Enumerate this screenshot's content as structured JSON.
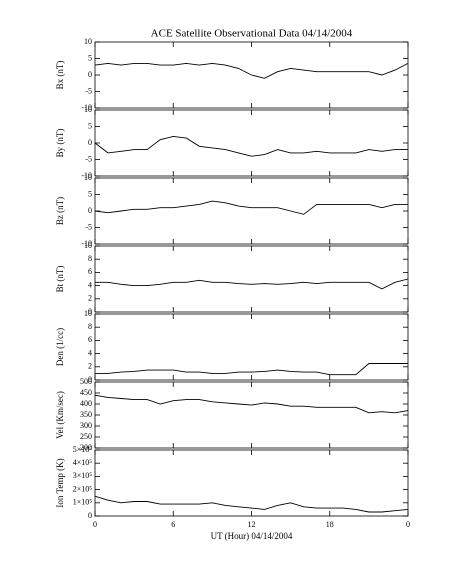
{
  "chart_data": [
    {
      "type": "line",
      "title": "ACE Satellite Observational Data   04/14/2004",
      "y_label": "Bx (nT)",
      "color": "#000000",
      "x": [
        0,
        1,
        2,
        3,
        4,
        5,
        6,
        7,
        8,
        9,
        10,
        11,
        12,
        13,
        14,
        15,
        16,
        17,
        18,
        19,
        20,
        21,
        22,
        23,
        24
      ],
      "values": [
        3,
        3.5,
        3,
        3.5,
        3.5,
        3,
        3,
        3.5,
        3,
        3.5,
        3,
        2,
        0,
        -1,
        1,
        2,
        1.5,
        1,
        1,
        1,
        1,
        1,
        0,
        1.5,
        3.5
      ],
      "xlim": [
        0,
        24
      ],
      "xticks": [
        0,
        6,
        12,
        18,
        {
          "value": 24,
          "label": "0"
        }
      ],
      "ylim": [
        -10,
        10
      ],
      "yticks": [
        -10,
        -5,
        0,
        5,
        10
      ]
    },
    {
      "type": "line",
      "y_label": "By (nT)",
      "color": "#000000",
      "x": [
        0,
        1,
        2,
        3,
        4,
        5,
        6,
        7,
        8,
        9,
        10,
        11,
        12,
        13,
        14,
        15,
        16,
        17,
        18,
        19,
        20,
        21,
        22,
        23,
        24
      ],
      "values": [
        0,
        -3,
        -2.5,
        -2,
        -2,
        1,
        2,
        1.5,
        -1,
        -1.5,
        -2,
        -3,
        -4,
        -3.5,
        -2,
        -3,
        -3,
        -2.5,
        -3,
        -3,
        -3,
        -2,
        -2.5,
        -2,
        -2
      ],
      "xlim": [
        0,
        24
      ],
      "xticks": [
        0,
        6,
        12,
        18,
        {
          "value": 24,
          "label": "0"
        }
      ],
      "ylim": [
        -10,
        10
      ],
      "yticks": [
        -10,
        -5,
        0,
        5,
        10
      ]
    },
    {
      "type": "line",
      "y_label": "Bz (nT)",
      "color": "#000000",
      "x": [
        0,
        1,
        2,
        3,
        4,
        5,
        6,
        7,
        8,
        9,
        10,
        11,
        12,
        13,
        14,
        15,
        16,
        17,
        18,
        19,
        20,
        21,
        22,
        23,
        24
      ],
      "values": [
        0,
        -0.5,
        0,
        0.5,
        0.5,
        1,
        1,
        1.5,
        2,
        3,
        2.5,
        1.5,
        1,
        1,
        1,
        0,
        -1,
        2,
        2,
        2,
        2,
        2,
        1,
        2,
        2
      ],
      "xlim": [
        0,
        24
      ],
      "xticks": [
        0,
        6,
        12,
        18,
        {
          "value": 24,
          "label": "0"
        }
      ],
      "ylim": [
        -10,
        10
      ],
      "yticks": [
        -10,
        -5,
        0,
        5,
        10
      ]
    },
    {
      "type": "line",
      "y_label": "Bt (nT)",
      "color": "#000000",
      "x": [
        0,
        1,
        2,
        3,
        4,
        5,
        6,
        7,
        8,
        9,
        10,
        11,
        12,
        13,
        14,
        15,
        16,
        17,
        18,
        19,
        20,
        21,
        22,
        23,
        24
      ],
      "values": [
        4.5,
        4.5,
        4.2,
        4,
        4,
        4.2,
        4.5,
        4.5,
        4.8,
        4.5,
        4.5,
        4.3,
        4.2,
        4.3,
        4.2,
        4.3,
        4.5,
        4.3,
        4.5,
        4.5,
        4.5,
        4.5,
        3.5,
        4.5,
        5
      ],
      "xlim": [
        0,
        24
      ],
      "xticks": [
        0,
        6,
        12,
        18,
        {
          "value": 24,
          "label": "0"
        }
      ],
      "ylim": [
        0,
        10
      ],
      "yticks": [
        0,
        2,
        4,
        6,
        8,
        10
      ]
    },
    {
      "type": "line",
      "y_label": "Den (1/cc)",
      "color": "#000000",
      "x": [
        0,
        1,
        2,
        3,
        4,
        5,
        6,
        7,
        8,
        9,
        10,
        11,
        12,
        13,
        14,
        15,
        16,
        17,
        18,
        19,
        20,
        21,
        22,
        23,
        24
      ],
      "values": [
        1,
        1,
        1.2,
        1.3,
        1.5,
        1.5,
        1.5,
        1.2,
        1.2,
        1,
        1,
        1.2,
        1.2,
        1.3,
        1.5,
        1.3,
        1.2,
        1.2,
        0.8,
        0.8,
        0.8,
        2.5,
        2.5,
        2.5,
        2.5
      ],
      "xlim": [
        0,
        24
      ],
      "xticks": [
        0,
        6,
        12,
        18,
        {
          "value": 24,
          "label": "0"
        }
      ],
      "ylim": [
        0,
        10
      ],
      "yticks": [
        0,
        2,
        4,
        6,
        8,
        10
      ]
    },
    {
      "type": "line",
      "y_label": "Vel (Km/sec)",
      "color": "#000000",
      "x": [
        0,
        1,
        2,
        3,
        4,
        5,
        6,
        7,
        8,
        9,
        10,
        11,
        12,
        13,
        14,
        15,
        16,
        17,
        18,
        19,
        20,
        21,
        22,
        23,
        24
      ],
      "values": [
        440,
        430,
        425,
        420,
        420,
        400,
        415,
        420,
        420,
        410,
        405,
        400,
        395,
        405,
        400,
        390,
        390,
        385,
        385,
        385,
        385,
        360,
        365,
        360,
        370
      ],
      "xlim": [
        0,
        24
      ],
      "xticks": [
        0,
        6,
        12,
        18,
        {
          "value": 24,
          "label": "0"
        }
      ],
      "ylim": [
        200,
        500
      ],
      "yticks": [
        200,
        250,
        300,
        350,
        400,
        450,
        500
      ]
    },
    {
      "type": "line",
      "y_label": "Ion Temp (K)",
      "x_label": "UT (Hour)  04/14/2004",
      "color": "#000000",
      "x": [
        0,
        1,
        2,
        3,
        4,
        5,
        6,
        7,
        8,
        9,
        10,
        11,
        12,
        13,
        14,
        15,
        16,
        17,
        18,
        19,
        20,
        21,
        22,
        23,
        24
      ],
      "values": [
        150000,
        120000,
        100000,
        110000,
        110000,
        90000,
        90000,
        90000,
        90000,
        100000,
        80000,
        70000,
        60000,
        50000,
        80000,
        100000,
        70000,
        60000,
        60000,
        60000,
        50000,
        30000,
        30000,
        40000,
        50000
      ],
      "xlim": [
        0,
        24
      ],
      "xticks": [
        0,
        6,
        12,
        18,
        {
          "value": 24,
          "label": "0"
        }
      ],
      "ylim": [
        0,
        500000
      ],
      "yticks": [
        0,
        {
          "value": 100000,
          "label": "1×10⁵"
        },
        {
          "value": 200000,
          "label": "2×10⁵"
        },
        {
          "value": 300000,
          "label": "3×10⁵"
        },
        {
          "value": 400000,
          "label": "4×10⁵"
        },
        {
          "value": 500000,
          "label": "5×10⁵"
        }
      ]
    }
  ]
}
